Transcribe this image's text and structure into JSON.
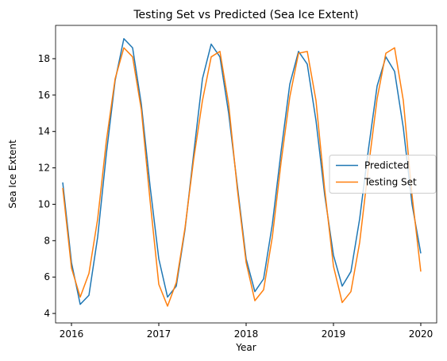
{
  "chart_data": {
    "type": "line",
    "title": "Testing Set vs Predicted (Sea Ice Extent)",
    "xlabel": "Year",
    "ylabel": "Sea Ice Extent",
    "x": [
      2015.9,
      2016.0,
      2016.1,
      2016.2,
      2016.3,
      2016.4,
      2016.5,
      2016.6,
      2016.7,
      2016.8,
      2016.9,
      2017.0,
      2017.1,
      2017.2,
      2017.3,
      2017.4,
      2017.5,
      2017.6,
      2017.7,
      2017.8,
      2017.9,
      2018.0,
      2018.1,
      2018.2,
      2018.3,
      2018.4,
      2018.5,
      2018.6,
      2018.7,
      2018.8,
      2018.9,
      2019.0,
      2019.1,
      2019.2,
      2019.3,
      2019.4,
      2019.5,
      2019.6,
      2019.7,
      2019.8,
      2019.9,
      2020.0
    ],
    "series": [
      {
        "name": "Predicted",
        "color": "#1f77b4",
        "values": [
          11.2,
          6.8,
          4.5,
          5.0,
          8.2,
          12.8,
          16.8,
          19.1,
          18.6,
          15.5,
          11.0,
          7.0,
          4.9,
          5.5,
          8.6,
          12.8,
          16.9,
          18.8,
          18.1,
          15.0,
          11.0,
          7.0,
          5.2,
          5.9,
          8.9,
          12.9,
          16.6,
          18.4,
          17.7,
          14.6,
          10.5,
          7.2,
          5.5,
          6.3,
          9.2,
          13.0,
          16.5,
          18.1,
          17.3,
          14.2,
          10.0,
          7.3
        ]
      },
      {
        "name": "Testing Set",
        "color": "#ff7f0e",
        "values": [
          10.9,
          6.5,
          4.9,
          6.2,
          9.2,
          13.5,
          16.9,
          18.6,
          18.1,
          15.2,
          10.2,
          5.6,
          4.4,
          5.7,
          8.7,
          12.5,
          15.7,
          18.1,
          18.4,
          15.5,
          10.8,
          6.8,
          4.7,
          5.3,
          8.2,
          12.3,
          15.9,
          18.3,
          18.4,
          15.7,
          10.8,
          6.6,
          4.6,
          5.2,
          7.9,
          12.0,
          15.8,
          18.3,
          18.6,
          15.7,
          10.5,
          6.3
        ]
      }
    ],
    "xlim": [
      2015.818,
      2020.182
    ],
    "xticks": [
      2016,
      2017,
      2018,
      2019,
      2020
    ],
    "ylim": [
      3.48,
      19.83
    ],
    "yticks": [
      4,
      6,
      8,
      10,
      12,
      14,
      16,
      18
    ],
    "grid": false,
    "legend": "center right"
  }
}
